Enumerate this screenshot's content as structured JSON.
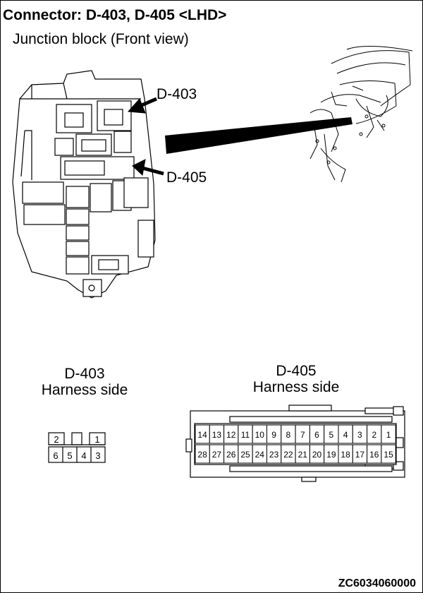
{
  "header": {
    "title": "Connector: D-403, D-405 <LHD>",
    "subtitle": "Junction block (Front view)"
  },
  "callouts": {
    "d403": "D-403",
    "d405": "D-405"
  },
  "connector_d403": {
    "name": "D-403",
    "side": "Harness side",
    "top_pins": [
      "2",
      "",
      "1"
    ],
    "bottom_pins": [
      "6",
      "5",
      "4",
      "3"
    ]
  },
  "connector_d405": {
    "name": "D-405",
    "side": "Harness side",
    "top_pins": [
      "14",
      "13",
      "12",
      "11",
      "10",
      "9",
      "8",
      "7",
      "6",
      "5",
      "4",
      "3",
      "2",
      "1"
    ],
    "bottom_pins": [
      "28",
      "27",
      "26",
      "25",
      "24",
      "23",
      "22",
      "21",
      "20",
      "19",
      "18",
      "17",
      "16",
      "15"
    ]
  },
  "footer": {
    "code": "ZC6034060000"
  }
}
